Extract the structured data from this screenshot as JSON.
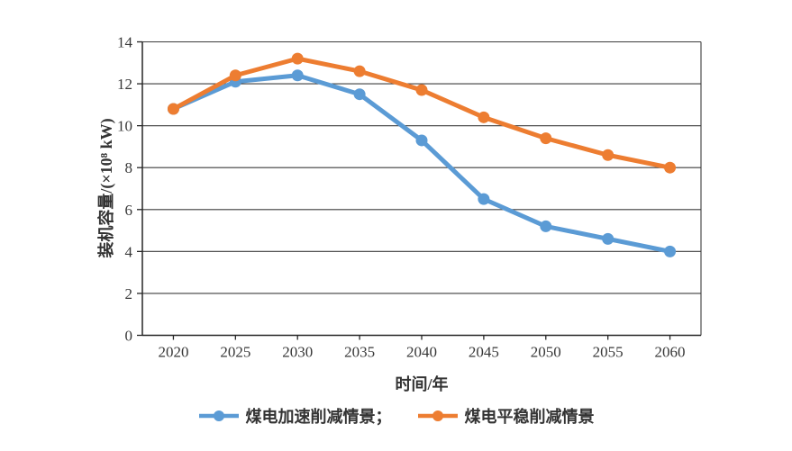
{
  "chart_data": {
    "type": "line",
    "title": "",
    "categories": [
      "2020",
      "2025",
      "2030",
      "2035",
      "2040",
      "2045",
      "2050",
      "2055",
      "2060"
    ],
    "series": [
      {
        "name": "煤电加速削减情景",
        "legend_label": "煤电加速削减情景；",
        "color": "#5B9BD5",
        "values": [
          10.8,
          12.1,
          12.4,
          11.5,
          9.3,
          6.5,
          5.2,
          4.6,
          4.0
        ]
      },
      {
        "name": "煤电平稳削减情景",
        "legend_label": "煤电平稳削减情景",
        "color": "#ED7D31",
        "values": [
          10.8,
          12.4,
          13.2,
          12.6,
          11.7,
          10.4,
          9.4,
          8.6,
          8.0
        ]
      }
    ],
    "xlabel": "时间/年",
    "ylabel": "装机容量/(×10⁸ kW)",
    "ylim": [
      0,
      14
    ],
    "yticks": [
      0,
      2,
      4,
      6,
      8,
      10,
      12,
      14
    ],
    "grid": "horizontal",
    "legend_position": "bottom",
    "marker": "circle"
  },
  "colors": {
    "background": "#ffffff",
    "gridline": "#3d3d3d",
    "axis": "#262626",
    "tick_text": "#383838",
    "series_blue": "#5B9BD5",
    "series_orange": "#ED7D31"
  }
}
